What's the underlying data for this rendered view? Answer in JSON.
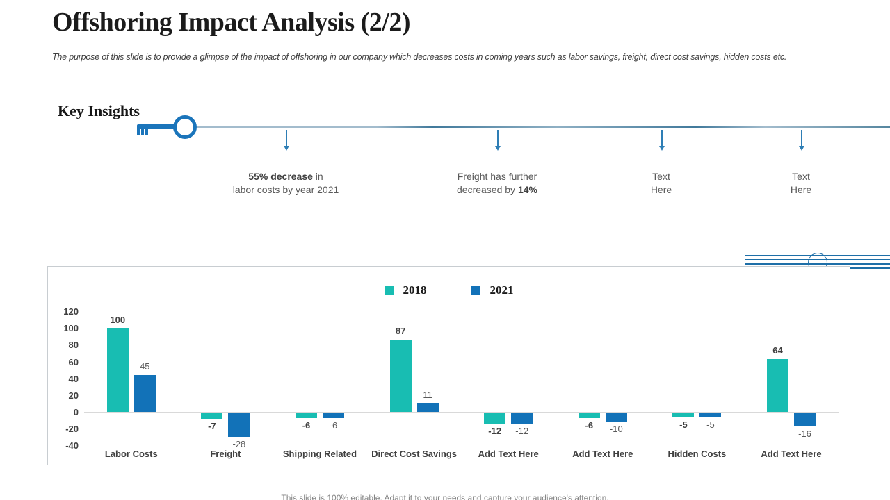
{
  "slide": {
    "title": "Offshoring Impact Analysis (2/2)",
    "subtitle": "The purpose of this slide is to provide a glimpse of the impact of offshoring in our company which decreases costs in coming years such as labor savings, freight, direct cost savings, hidden costs etc.",
    "footer": "This slide is 100% editable. Adapt it to your needs and capture your audience's attention."
  },
  "key_insights": {
    "heading": "Key Insights",
    "items": [
      {
        "lines": [
          [
            {
              "t": "55% decrease",
              "b": true
            },
            {
              "t": " in",
              "b": false
            }
          ],
          [
            {
              "t": "labor costs by year 2021",
              "b": false
            }
          ]
        ]
      },
      {
        "lines": [
          [
            {
              "t": "Freight has further",
              "b": false
            }
          ],
          [
            {
              "t": "decreased by ",
              "b": false
            },
            {
              "t": "14%",
              "b": true
            }
          ]
        ]
      },
      {
        "lines": [
          [
            {
              "t": "Text",
              "b": false
            }
          ],
          [
            {
              "t": "Here",
              "b": false
            }
          ]
        ]
      },
      {
        "lines": [
          [
            {
              "t": "Text",
              "b": false
            }
          ],
          [
            {
              "t": "Here",
              "b": false
            }
          ]
        ]
      }
    ]
  },
  "chart_data": {
    "type": "bar",
    "categories": [
      "Labor Costs",
      "Freight",
      "Shipping Related",
      "Direct Cost Savings",
      "Add Text Here",
      "Add Text Here",
      "Hidden Costs",
      "Add Text Here"
    ],
    "series": [
      {
        "name": "2018",
        "color": "#18bdb2",
        "values": [
          100,
          -7,
          -6,
          87,
          -12,
          -6,
          -5,
          64
        ]
      },
      {
        "name": "2021",
        "color": "#1272b8",
        "values": [
          45,
          -28,
          -6,
          11,
          -12,
          -10,
          -5,
          -16
        ]
      }
    ],
    "title": "",
    "xlabel": "",
    "ylabel": "",
    "ylim": [
      -40,
      120
    ],
    "yticks": [
      120,
      100,
      80,
      60,
      40,
      20,
      0,
      -20,
      -40
    ],
    "grid": false,
    "legend_position": "top-center",
    "accent_colors": {
      "teal": "#18bdb2",
      "blue": "#1272b8",
      "key_blue": "#1b75bb"
    }
  }
}
